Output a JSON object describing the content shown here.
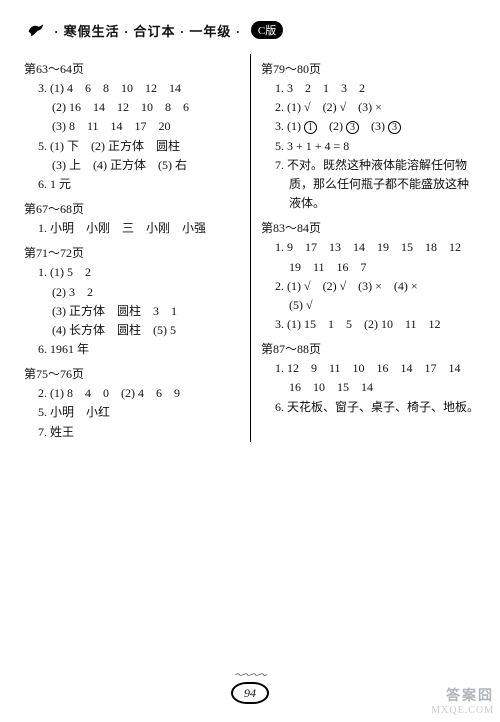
{
  "header": {
    "title_parts": [
      "寒假生活",
      "合订本",
      "一年级"
    ],
    "badge": "C版",
    "dot": "·"
  },
  "left": [
    {
      "type": "title",
      "text": "第63～64页"
    },
    {
      "type": "line",
      "text": "3. (1) 4　6　8　10　12　14"
    },
    {
      "type": "cont",
      "text": "(2) 16　14　12　10　8　6"
    },
    {
      "type": "cont",
      "text": "(3) 8　11　14　17　20"
    },
    {
      "type": "line",
      "text": "5. (1) 下　(2) 正方体　圆柱"
    },
    {
      "type": "cont",
      "text": "(3) 上　(4) 正方体　(5) 右"
    },
    {
      "type": "line",
      "text": "6. 1 元"
    },
    {
      "type": "title",
      "text": "第67～68页"
    },
    {
      "type": "line",
      "text": "1. 小明　小刚　三　小刚　小强"
    },
    {
      "type": "title",
      "text": "第71～72页"
    },
    {
      "type": "line",
      "text": "1. (1) 5　2"
    },
    {
      "type": "cont",
      "text": "(2) 3　2"
    },
    {
      "type": "cont",
      "text": "(3) 正方体　圆柱　3　1"
    },
    {
      "type": "cont",
      "text": "(4) 长方体　圆柱　(5) 5"
    },
    {
      "type": "line",
      "text": "6. 1961 年"
    },
    {
      "type": "title",
      "text": "第75～76页"
    },
    {
      "type": "line",
      "text": "2. (1) 8　4　0　(2) 4　6　9"
    },
    {
      "type": "line",
      "text": "5. 小明　小红"
    },
    {
      "type": "line",
      "text": "7. 姓王"
    }
  ],
  "right": [
    {
      "type": "title",
      "text": "第79～80页"
    },
    {
      "type": "line",
      "text": "1. 3　2　1　3　2"
    },
    {
      "type": "line",
      "text": "2. (1) √　(2) √　(3) ×"
    },
    {
      "type": "line-circ",
      "prefix": "3. (1) ",
      "items": [
        "①",
        "(2) ",
        "③",
        "(3) ",
        "③"
      ]
    },
    {
      "type": "line",
      "text": "5. 3 + 1 + 4 = 8"
    },
    {
      "type": "long",
      "text": "7. 不对。既然这种液体能溶解任何物"
    },
    {
      "type": "cont",
      "text": "质，那么任何瓶子都不能盛放这种"
    },
    {
      "type": "cont",
      "text": "液体。"
    },
    {
      "type": "title",
      "text": "第83～84页"
    },
    {
      "type": "line",
      "text": "1. 9　17　13　14　19　15　18　12"
    },
    {
      "type": "cont",
      "text": "19　11　16　7"
    },
    {
      "type": "line",
      "text": "2. (1) √　(2) √　(3) ×　(4) ×"
    },
    {
      "type": "cont",
      "text": "(5) √"
    },
    {
      "type": "line",
      "text": "3. (1) 15　1　5　(2) 10　11　12"
    },
    {
      "type": "title",
      "text": "第87～88页"
    },
    {
      "type": "line",
      "text": "1. 12　9　11　10　16　14　17　14"
    },
    {
      "type": "cont",
      "text": "16　10　15　14"
    },
    {
      "type": "line",
      "text": "6. 天花板、窗子、桌子、椅子、地板。"
    }
  ],
  "footer": {
    "scribble": "～～～～",
    "page_number": "94"
  },
  "watermark": {
    "top": "答案囧",
    "bottom": "MXQE.COM"
  }
}
